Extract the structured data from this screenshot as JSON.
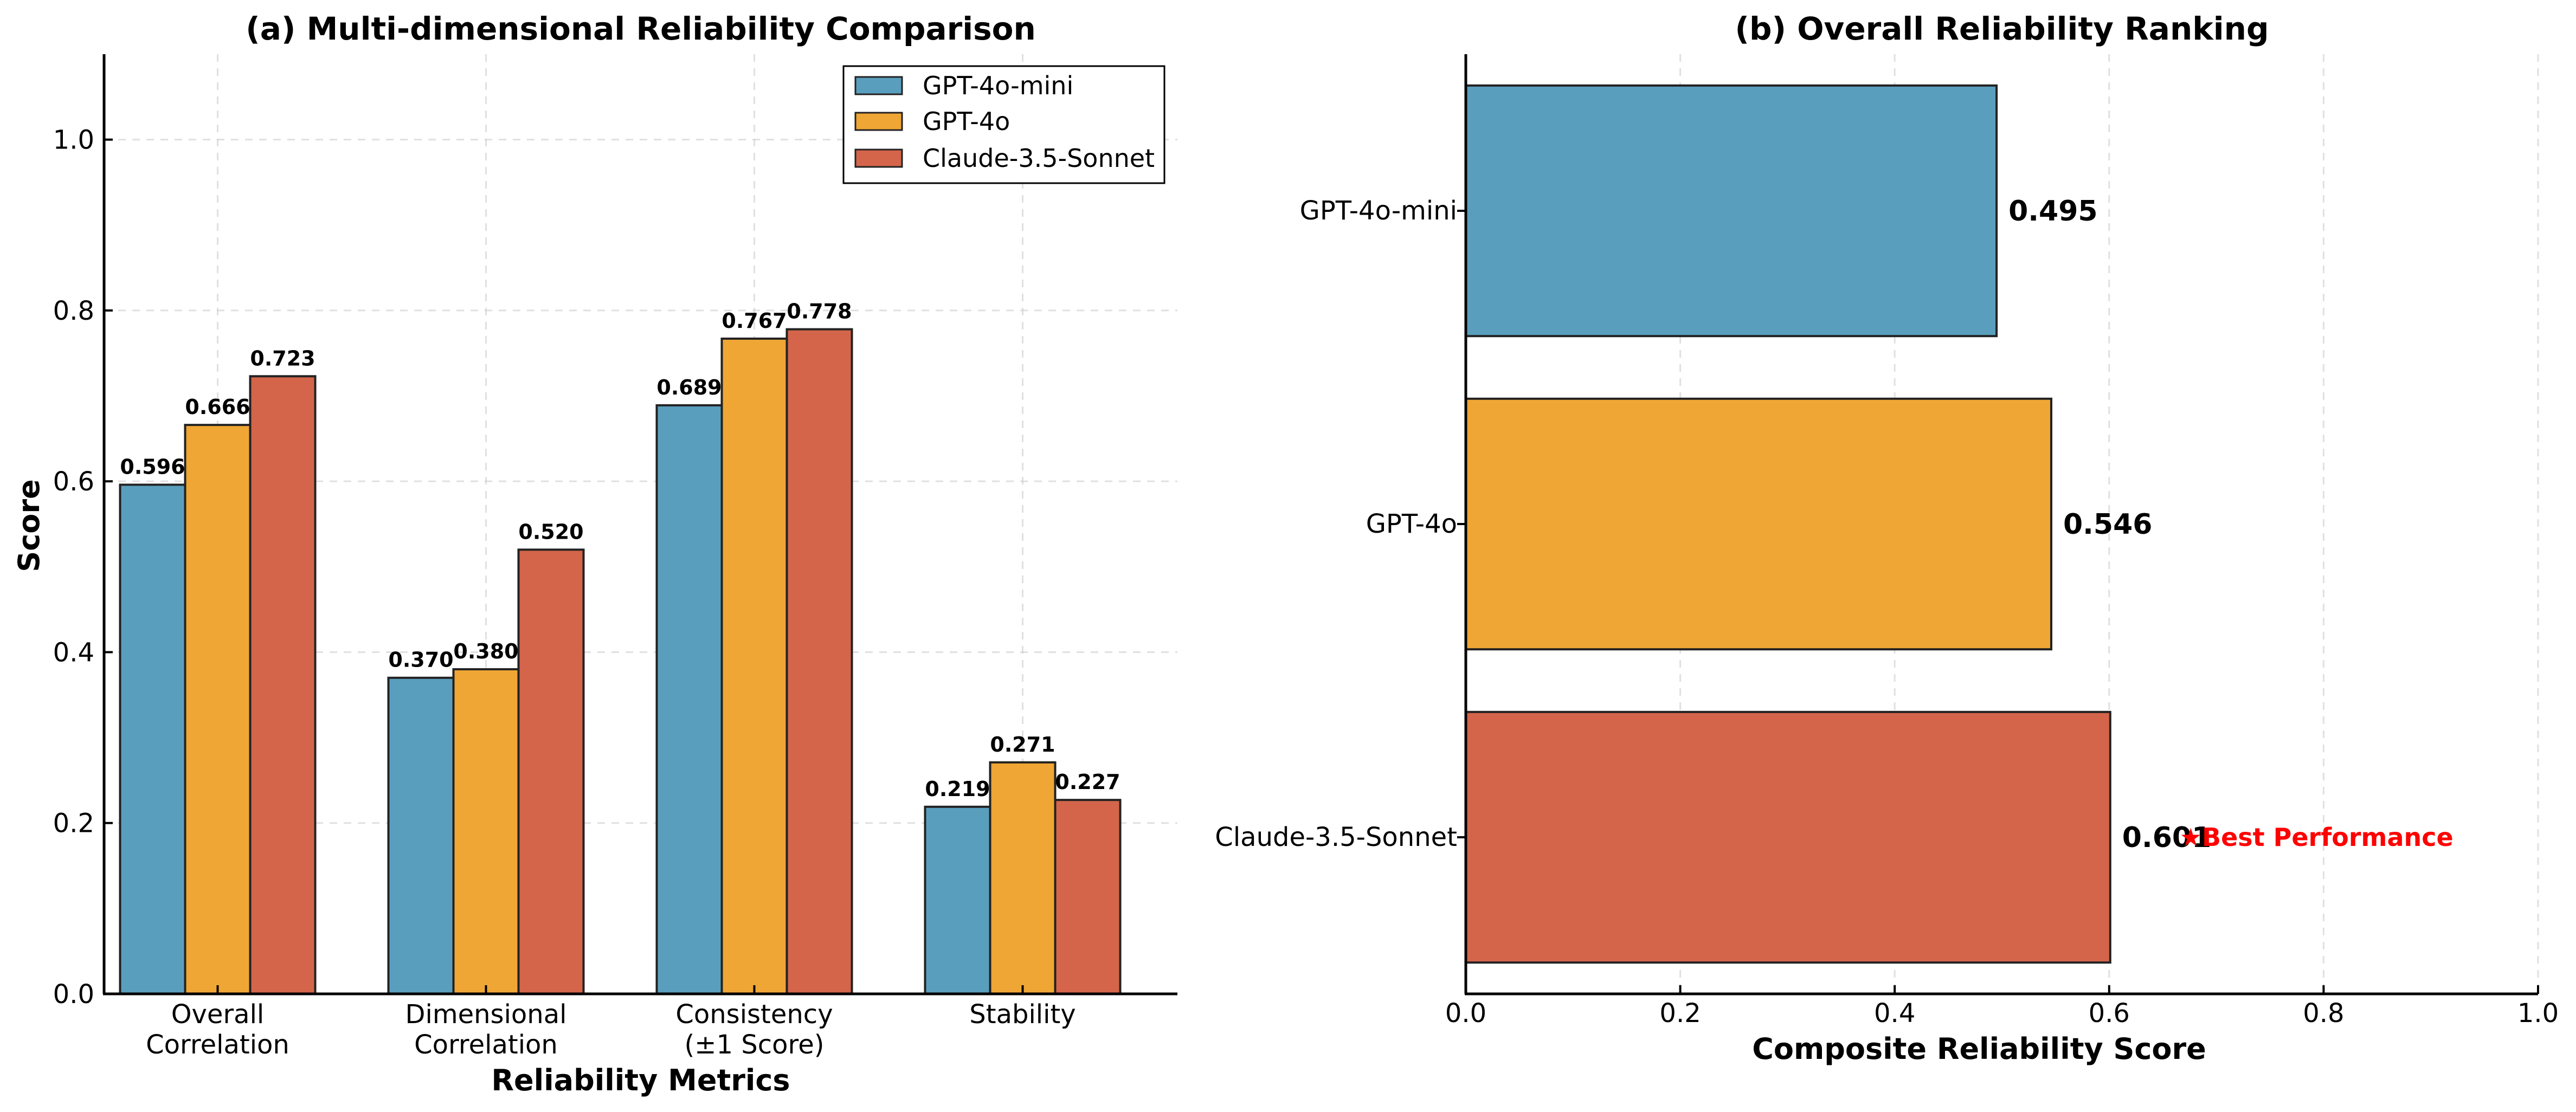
{
  "chart_data": [
    {
      "type": "bar",
      "title": "(a) Multi-dimensional Reliability Comparison",
      "xlabel": "Reliability Metrics",
      "ylabel": "Score",
      "categories": [
        [
          "Overall",
          "Correlation"
        ],
        [
          "Dimensional",
          "Correlation"
        ],
        [
          "Consistency",
          "(±1 Score)"
        ],
        [
          "Stability"
        ]
      ],
      "series": [
        {
          "name": "GPT-4o-mini",
          "color": "#5a9ebd",
          "values": [
            0.596,
            0.37,
            0.689,
            0.219
          ],
          "labels": [
            "0.596",
            "0.370",
            "0.689",
            "0.219"
          ]
        },
        {
          "name": "GPT-4o",
          "color": "#f0a634",
          "values": [
            0.666,
            0.38,
            0.767,
            0.271
          ],
          "labels": [
            "0.666",
            "0.380",
            "0.767",
            "0.271"
          ]
        },
        {
          "name": "Claude-3.5-Sonnet",
          "color": "#d4654b",
          "values": [
            0.723,
            0.52,
            0.778,
            0.227
          ],
          "labels": [
            "0.723",
            "0.520",
            "0.778",
            "0.227"
          ]
        }
      ],
      "ylim": [
        0,
        1.1
      ],
      "yticks": [
        0.0,
        0.2,
        0.4,
        0.6,
        0.8,
        1.0
      ],
      "ytick_labels": [
        "0.0",
        "0.2",
        "0.4",
        "0.6",
        "0.8",
        "1.0"
      ],
      "grid": true,
      "legend": "top-right"
    },
    {
      "type": "bar",
      "orientation": "horizontal",
      "title": "(b) Overall Reliability Ranking",
      "xlabel": "Composite Reliability Score",
      "categories": [
        "GPT-4o-mini",
        "GPT-4o",
        "Claude-3.5-Sonnet"
      ],
      "values": [
        0.495,
        0.546,
        0.601
      ],
      "labels": [
        "0.495",
        "0.546",
        "0.601"
      ],
      "colors": [
        "#5a9ebd",
        "#f0a634",
        "#d4654b"
      ],
      "xlim": [
        0,
        1.0
      ],
      "xticks": [
        0.0,
        0.2,
        0.4,
        0.6,
        0.8,
        1.0
      ],
      "xtick_labels": [
        "0.0",
        "0.2",
        "0.4",
        "0.6",
        "0.8",
        "1.0"
      ],
      "grid": true,
      "annotation": {
        "text": "★Best Performance",
        "category": "Claude-3.5-Sonnet",
        "color": "#ff0000"
      }
    }
  ]
}
